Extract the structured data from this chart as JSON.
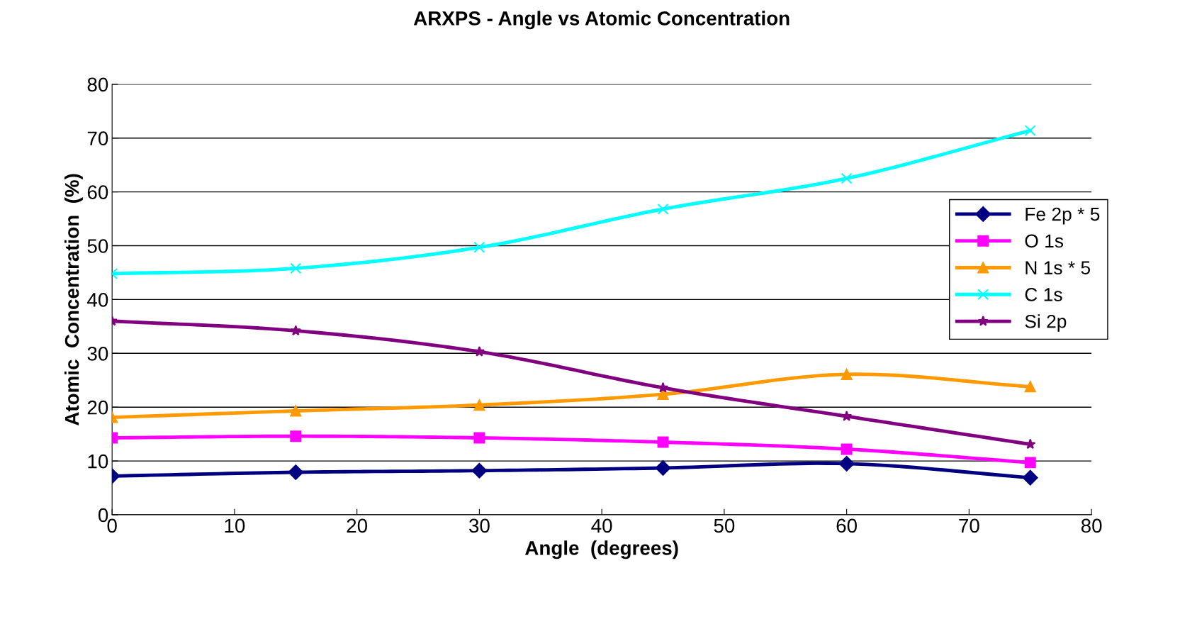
{
  "chart_data": {
    "type": "line",
    "title": "ARXPS - Angle vs Atomic Concentration",
    "xlabel": "Angle  (degrees)",
    "ylabel": "Atomic  Concentration  (%)",
    "x": [
      0,
      15,
      30,
      45,
      60,
      75
    ],
    "series": [
      {
        "name": "Fe 2p * 5",
        "color": "#000080",
        "marker": "diamond",
        "values": [
          7.2,
          7.9,
          8.2,
          8.7,
          9.5,
          6.9
        ]
      },
      {
        "name": "O 1s",
        "color": "#ff00ff",
        "marker": "square",
        "values": [
          14.3,
          14.6,
          14.3,
          13.5,
          12.2,
          9.7
        ]
      },
      {
        "name": "N 1s * 5",
        "color": "#ff9900",
        "marker": "triangle",
        "values": [
          18.1,
          19.3,
          20.4,
          22.4,
          26.1,
          23.8
        ]
      },
      {
        "name": "C 1s",
        "color": "#00ffff",
        "marker": "cross",
        "values": [
          44.8,
          45.8,
          49.7,
          56.8,
          62.5,
          71.4
        ]
      },
      {
        "name": "Si 2p",
        "color": "#800080",
        "marker": "star",
        "values": [
          36.0,
          34.2,
          30.3,
          23.6,
          18.3,
          13.1
        ]
      }
    ],
    "xlim": [
      0,
      80
    ],
    "xticks": [
      0,
      10,
      20,
      30,
      40,
      50,
      60,
      70,
      80
    ],
    "ylim": [
      0,
      80
    ],
    "yticks": [
      0,
      10,
      20,
      30,
      40,
      50,
      60,
      70,
      80
    ],
    "grid": "y",
    "legend": "right"
  }
}
